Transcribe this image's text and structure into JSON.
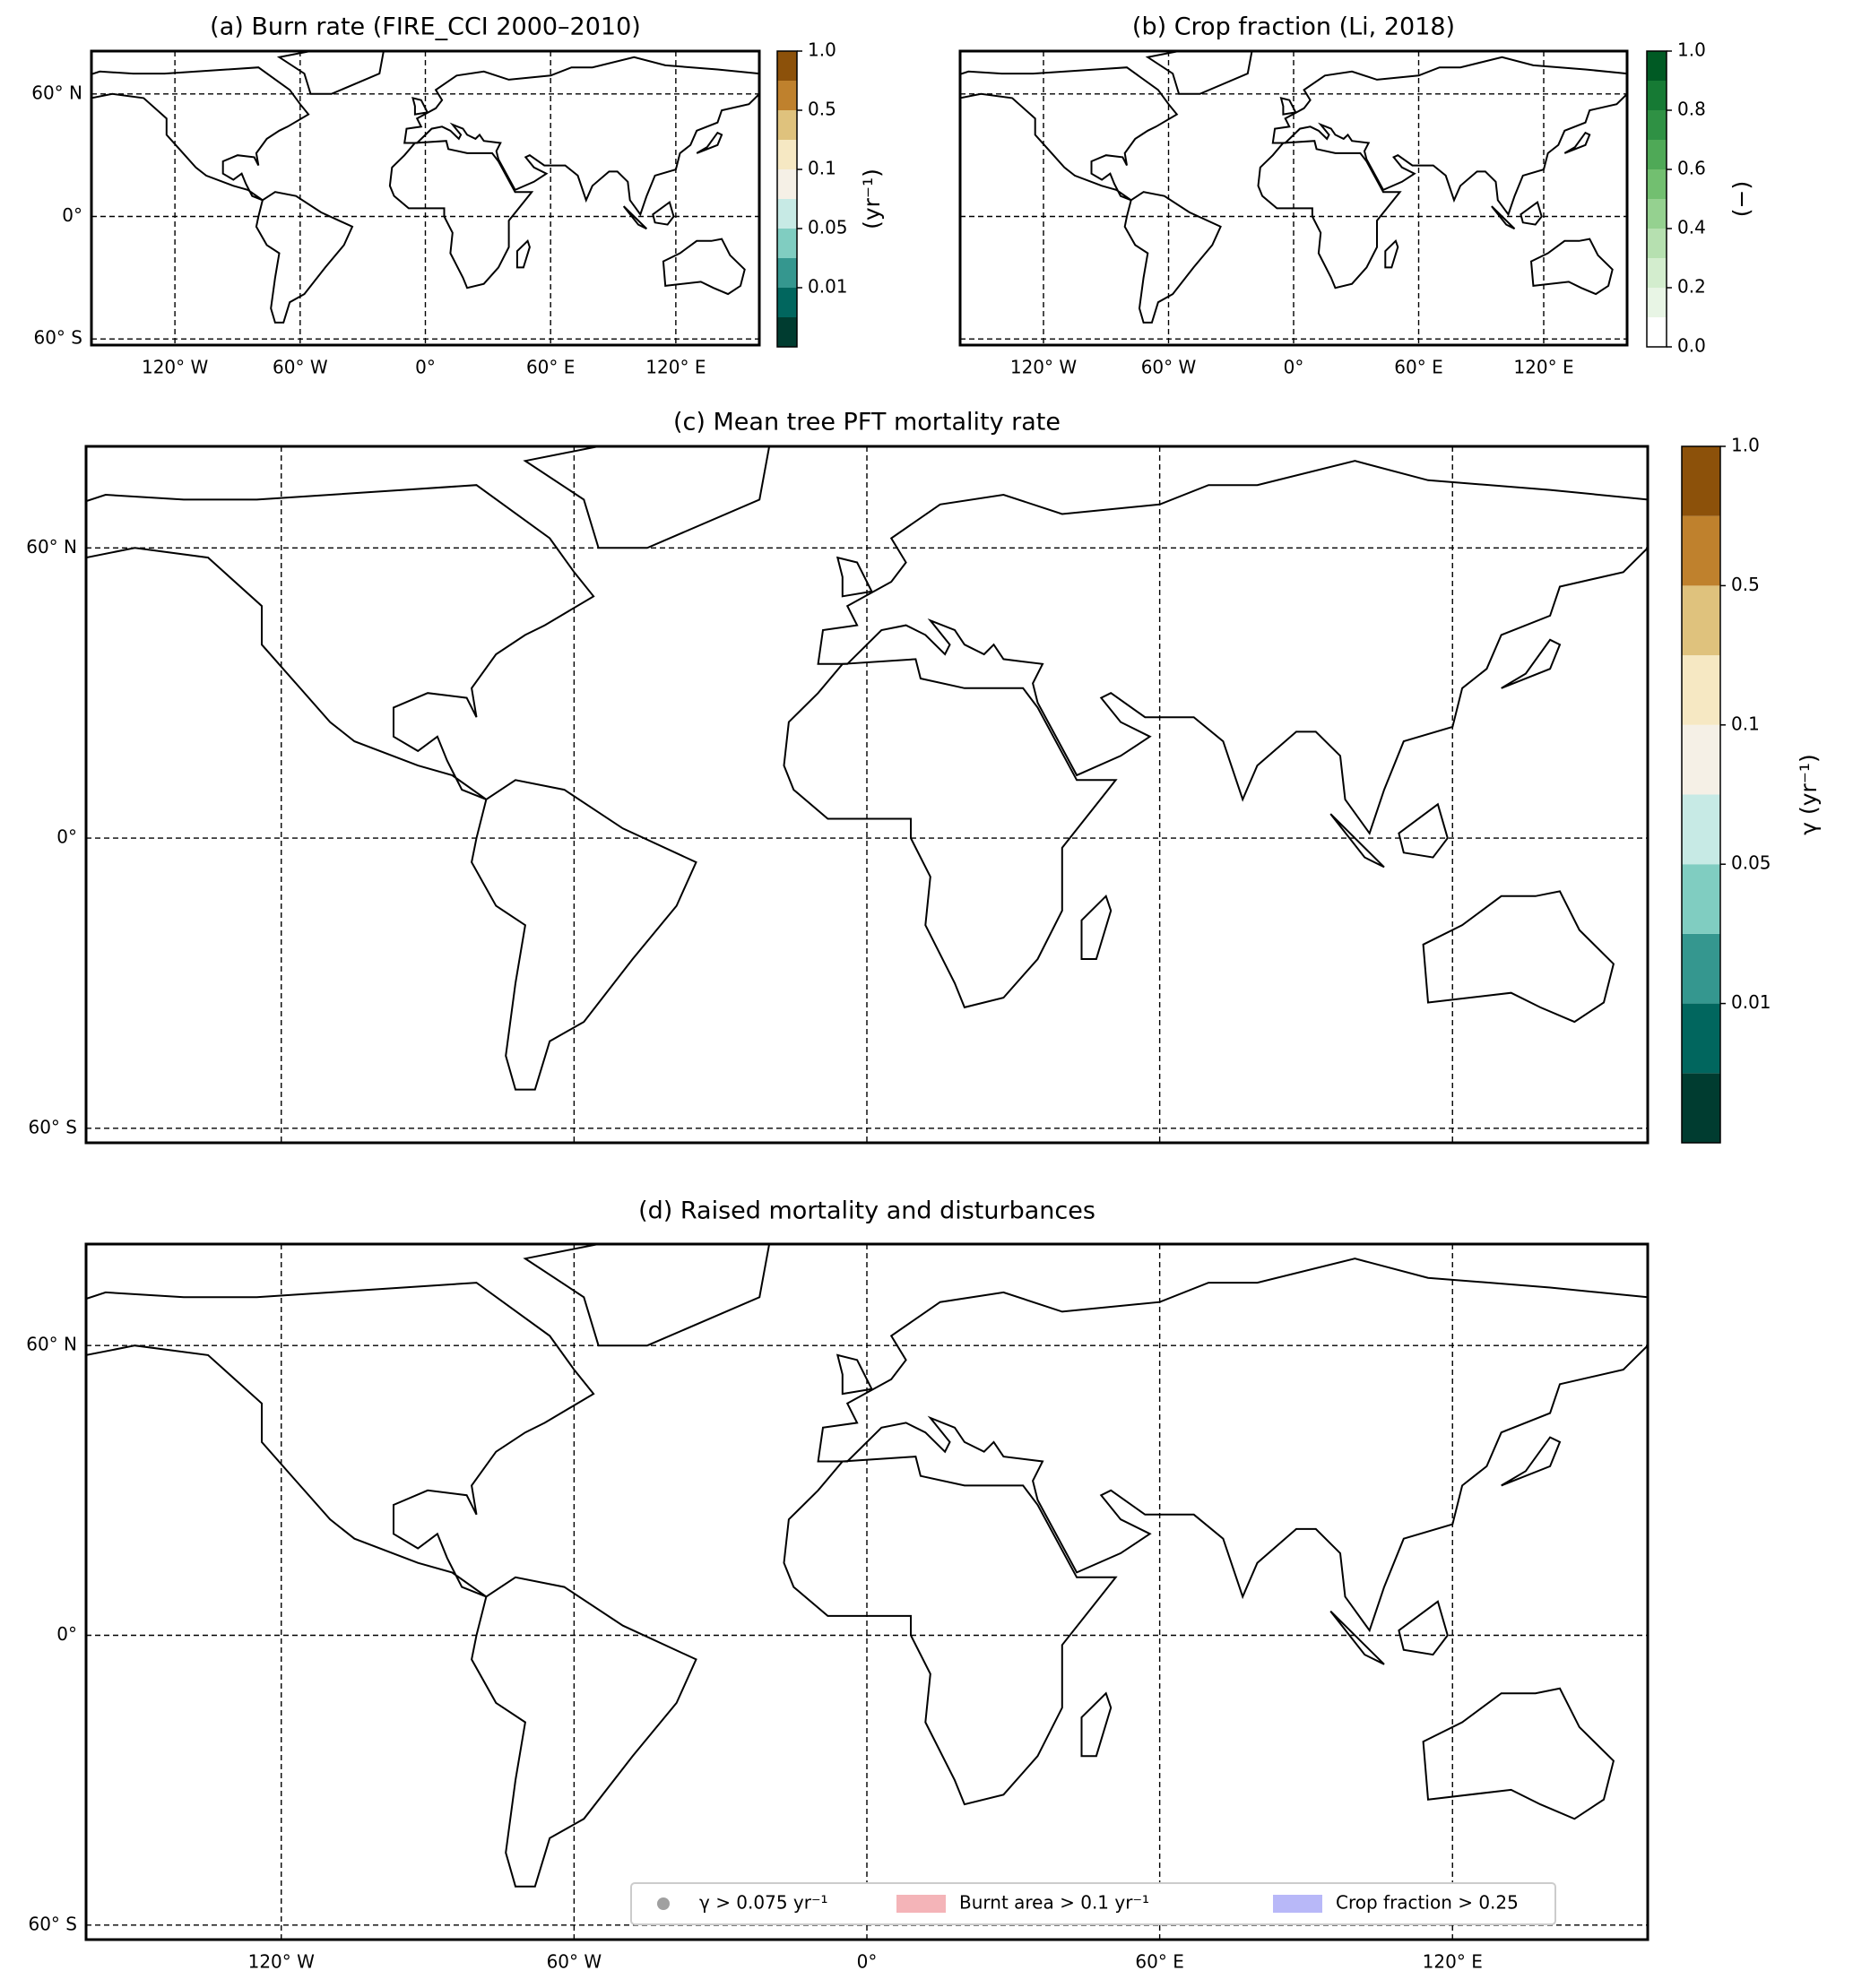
{
  "panels": [
    {
      "title": "(a) Burn rate (FIRE_CCI 2000–2010)",
      "xlim": [
        -160,
        160
      ],
      "ylim": [
        -63,
        81
      ],
      "xticks": [
        {
          "value": -120,
          "label": "120° W"
        },
        {
          "value": -60,
          "label": "60° W"
        },
        {
          "value": 0,
          "label": "0°"
        },
        {
          "value": 60,
          "label": "60° E"
        },
        {
          "value": 120,
          "label": "120° E"
        }
      ],
      "yticks": [
        {
          "value": 60,
          "label": "60° N"
        },
        {
          "value": 0,
          "label": "0°"
        },
        {
          "value": -60,
          "label": "60° S"
        }
      ],
      "show_xlabels": true,
      "show_ylabels": true,
      "colorbar": {
        "label": "(yr⁻¹)",
        "levels": [
          0.001,
          0.005,
          0.01,
          0.025,
          0.05,
          0.075,
          0.1,
          0.25,
          0.5,
          0.75,
          1.0
        ],
        "colors": [
          "#003c30",
          "#01665e",
          "#35978f",
          "#80cdc1",
          "#c7eae5",
          "#f5f0e6",
          "#f6e8c3",
          "#dfc27d",
          "#bf812d",
          "#8c510a"
        ],
        "ticks": [
          {
            "value": 0.01,
            "label": "0.01"
          },
          {
            "value": 0.05,
            "label": "0.05"
          },
          {
            "value": 0.1,
            "label": "0.1"
          },
          {
            "value": 0.5,
            "label": "0.5"
          },
          {
            "value": 1.0,
            "label": "1.0"
          }
        ]
      }
    },
    {
      "title": "(b) Crop fraction (Li, 2018)",
      "xlim": [
        -160,
        160
      ],
      "ylim": [
        -63,
        81
      ],
      "xticks": [
        {
          "value": -120,
          "label": "120° W"
        },
        {
          "value": -60,
          "label": "60° W"
        },
        {
          "value": 0,
          "label": "0°"
        },
        {
          "value": 60,
          "label": "60° E"
        },
        {
          "value": 120,
          "label": "120° E"
        }
      ],
      "yticks": [
        {
          "value": 60,
          "label": "60° N"
        },
        {
          "value": 0,
          "label": "0°"
        },
        {
          "value": -60,
          "label": "60° S"
        }
      ],
      "show_xlabels": true,
      "show_ylabels": false,
      "colorbar": {
        "label": "(−)",
        "levels": [
          0.0,
          0.1,
          0.2,
          0.3,
          0.4,
          0.5,
          0.6,
          0.7,
          0.8,
          0.9,
          1.0
        ],
        "colors": [
          "#ffffff",
          "#e8f5e5",
          "#d3edce",
          "#b6e0b0",
          "#95d190",
          "#72bf70",
          "#4fa957",
          "#2f9144",
          "#167a34",
          "#005a24"
        ],
        "ticks": [
          {
            "value": 0.0,
            "label": "0.0"
          },
          {
            "value": 0.2,
            "label": "0.2"
          },
          {
            "value": 0.4,
            "label": "0.4"
          },
          {
            "value": 0.6,
            "label": "0.6"
          },
          {
            "value": 0.8,
            "label": "0.8"
          },
          {
            "value": 1.0,
            "label": "1.0"
          }
        ]
      }
    },
    {
      "title": "(c) Mean tree PFT mortality rate",
      "xlim": [
        -160,
        160
      ],
      "ylim": [
        -63,
        81
      ],
      "xticks": [
        {
          "value": -120,
          "label": "120° W"
        },
        {
          "value": -60,
          "label": "60° W"
        },
        {
          "value": 0,
          "label": "0°"
        },
        {
          "value": 60,
          "label": "60° E"
        },
        {
          "value": 120,
          "label": "120° E"
        }
      ],
      "yticks": [
        {
          "value": 60,
          "label": "60° N"
        },
        {
          "value": 0,
          "label": "0°"
        },
        {
          "value": -60,
          "label": "60° S"
        }
      ],
      "show_xlabels": false,
      "show_ylabels": true,
      "colorbar": {
        "label": "γ (yr⁻¹)",
        "levels": [
          0.001,
          0.005,
          0.01,
          0.025,
          0.05,
          0.075,
          0.1,
          0.25,
          0.5,
          0.75,
          1.0
        ],
        "colors": [
          "#003c30",
          "#01665e",
          "#35978f",
          "#80cdc1",
          "#c7eae5",
          "#f5f0e6",
          "#f6e8c3",
          "#dfc27d",
          "#bf812d",
          "#8c510a"
        ],
        "ticks": [
          {
            "value": 0.01,
            "label": "0.01"
          },
          {
            "value": 0.05,
            "label": "0.05"
          },
          {
            "value": 0.1,
            "label": "0.1"
          },
          {
            "value": 0.5,
            "label": "0.5"
          },
          {
            "value": 1.0,
            "label": "1.0"
          }
        ]
      }
    },
    {
      "title": "(d) Raised mortality and disturbances",
      "xlim": [
        -160,
        160
      ],
      "ylim": [
        -63,
        81
      ],
      "xticks": [
        {
          "value": -120,
          "label": "120° W"
        },
        {
          "value": -60,
          "label": "60° W"
        },
        {
          "value": 0,
          "label": "0°"
        },
        {
          "value": 60,
          "label": "60° E"
        },
        {
          "value": 120,
          "label": "120° E"
        }
      ],
      "yticks": [
        {
          "value": 60,
          "label": "60° N"
        },
        {
          "value": 0,
          "label": "0°"
        },
        {
          "value": -60,
          "label": "60° S"
        }
      ],
      "show_xlabels": true,
      "show_ylabels": true,
      "legend": [
        {
          "name": "γ > 0.075 yr⁻¹",
          "color": "#a0a0a0",
          "marker": "circle"
        },
        {
          "name": "Burnt area > 0.1 yr⁻¹",
          "color": "#f4b4b8",
          "marker": "patch"
        },
        {
          "name": "Crop fraction > 0.25",
          "color": "#b8b8f8",
          "marker": "patch"
        }
      ]
    }
  ]
}
